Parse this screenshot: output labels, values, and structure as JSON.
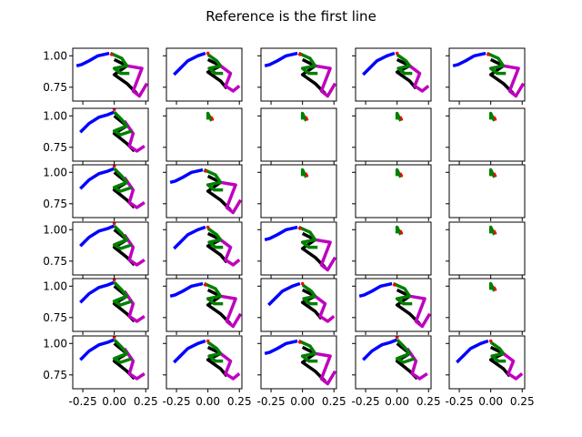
{
  "chart_data": {
    "type": "line",
    "title": "Reference is the first line",
    "grid": {
      "rows": 6,
      "cols": 5
    },
    "sharex": true,
    "sharey": true,
    "grid_lines": false,
    "xlim": [
      -0.33,
      0.27
    ],
    "ylim": [
      0.64,
      1.06
    ],
    "xticks": [
      {
        "value": -0.25,
        "label": "-0.25"
      },
      {
        "value": 0.0,
        "label": "0.00"
      },
      {
        "value": 0.25,
        "label": "0.25"
      }
    ],
    "yticks": [
      {
        "value": 0.75,
        "label": "0.75"
      },
      {
        "value": 1.0,
        "label": "1.00"
      }
    ],
    "colors": {
      "blue": "#0000ff",
      "black": "#000000",
      "green": "#008000",
      "magenta": "#bf00bf",
      "red": "#ff0000"
    },
    "poses": {
      "full_a": {
        "blue": [
          [
            -0.3,
            0.92
          ],
          [
            -0.26,
            0.93
          ],
          [
            -0.2,
            0.96
          ],
          [
            -0.13,
            1.0
          ],
          [
            -0.04,
            1.02
          ]
        ],
        "black": [
          [
            0.0,
            0.97
          ],
          [
            0.1,
            0.92
          ],
          [
            0.0,
            0.85
          ],
          [
            0.1,
            0.78
          ],
          [
            0.18,
            0.7
          ]
        ],
        "magenta": [
          [
            0.1,
            0.92
          ],
          [
            0.22,
            0.9
          ],
          [
            0.15,
            0.72
          ],
          [
            0.2,
            0.68
          ],
          [
            0.26,
            0.78
          ]
        ],
        "green": [
          [
            -0.03,
            1.02
          ],
          [
            0.06,
            0.98
          ],
          [
            0.1,
            0.92
          ],
          [
            0.0,
            0.9
          ],
          [
            0.05,
            0.86
          ],
          [
            0.12,
            0.86
          ]
        ],
        "red": [
          [
            -0.02,
            1.01
          ]
        ]
      },
      "full_b": {
        "blue": [
          [
            -0.27,
            0.85
          ],
          [
            -0.22,
            0.9
          ],
          [
            -0.16,
            0.96
          ],
          [
            -0.08,
            1.0
          ],
          [
            -0.02,
            1.02
          ]
        ],
        "black": [
          [
            0.0,
            0.97
          ],
          [
            0.1,
            0.92
          ],
          [
            0.0,
            0.87
          ],
          [
            0.1,
            0.8
          ],
          [
            0.15,
            0.74
          ]
        ],
        "magenta": [
          [
            0.1,
            0.92
          ],
          [
            0.18,
            0.86
          ],
          [
            0.14,
            0.76
          ],
          [
            0.2,
            0.72
          ],
          [
            0.25,
            0.76
          ]
        ],
        "green": [
          [
            0.0,
            1.01
          ],
          [
            0.07,
            0.96
          ],
          [
            0.1,
            0.92
          ],
          [
            0.01,
            0.9
          ],
          [
            0.06,
            0.86
          ],
          [
            0.12,
            0.86
          ]
        ],
        "red": [
          [
            0.0,
            1.02
          ]
        ]
      },
      "full_c": {
        "blue": [
          [
            -0.27,
            0.87
          ],
          [
            -0.2,
            0.94
          ],
          [
            -0.12,
            0.99
          ],
          [
            -0.05,
            1.01
          ],
          [
            0.0,
            1.03
          ]
        ],
        "black": [
          [
            0.0,
            1.0
          ],
          [
            0.1,
            0.92
          ],
          [
            0.0,
            0.86
          ],
          [
            0.1,
            0.78
          ],
          [
            0.16,
            0.72
          ]
        ],
        "magenta": [
          [
            0.08,
            0.96
          ],
          [
            0.15,
            0.86
          ],
          [
            0.12,
            0.76
          ],
          [
            0.18,
            0.72
          ],
          [
            0.24,
            0.76
          ]
        ],
        "green": [
          [
            0.0,
            1.03
          ],
          [
            0.06,
            0.97
          ],
          [
            0.1,
            0.92
          ],
          [
            0.0,
            0.88
          ],
          [
            0.05,
            0.85
          ],
          [
            0.14,
            0.88
          ]
        ],
        "red": [
          [
            0.0,
            1.05
          ]
        ]
      },
      "tiny": {
        "green": [
          [
            0.0,
            0.97
          ],
          [
            0.0,
            1.0
          ],
          [
            0.0,
            1.02
          ],
          [
            0.03,
            0.96
          ]
        ],
        "red": [
          [
            0.04,
            0.97
          ],
          [
            0.03,
            0.99
          ]
        ]
      }
    },
    "panel_pose": [
      [
        "full_a",
        "full_b",
        "full_a",
        "full_b",
        "full_a"
      ],
      [
        "full_c",
        "tiny",
        "tiny",
        "tiny",
        "tiny"
      ],
      [
        "full_c",
        "full_a",
        "tiny",
        "tiny",
        "tiny"
      ],
      [
        "full_c",
        "full_b",
        "full_a",
        "tiny",
        "tiny"
      ],
      [
        "full_c",
        "full_a",
        "full_b",
        "full_a",
        "tiny"
      ],
      [
        "full_c",
        "full_b",
        "full_a",
        "full_c",
        "full_b"
      ]
    ]
  }
}
